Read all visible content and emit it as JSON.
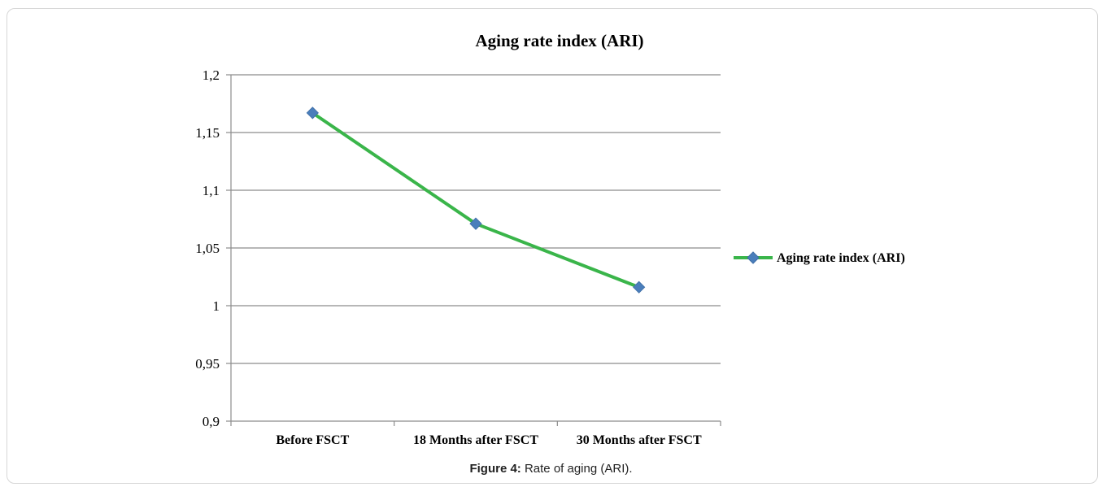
{
  "chart_data": {
    "type": "line",
    "title": "Aging rate index (ARI)",
    "categories": [
      "Before FSCT",
      "18 Months after FSCT",
      "30 Months after FSCT"
    ],
    "series": [
      {
        "name": "Aging rate index (ARI)",
        "values": [
          1.167,
          1.071,
          1.016
        ]
      }
    ],
    "ylim": [
      0.9,
      1.2
    ],
    "yticks": [
      0.9,
      0.95,
      1.0,
      1.05,
      1.1,
      1.15,
      1.2
    ],
    "ytick_labels": [
      "0,9",
      "0,95",
      "1",
      "1,05",
      "1,1",
      "1,15",
      "1,2"
    ],
    "grid": true,
    "legend_position": "right",
    "line_color": "#3ab54a",
    "marker_color": "#4a7ebb"
  },
  "caption": {
    "label": "Figure 4:",
    "text": " Rate of aging (ARI)."
  }
}
